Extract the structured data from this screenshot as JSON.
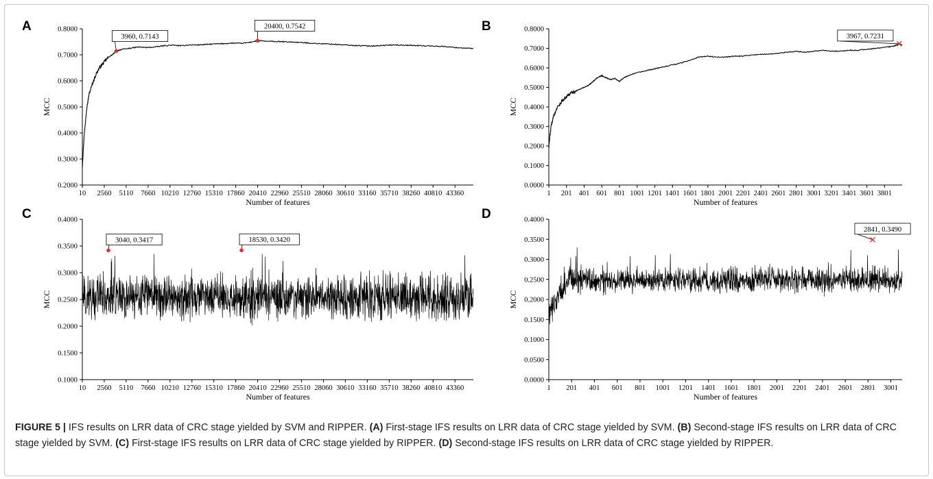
{
  "caption": {
    "figure_label": "FIGURE 5 |",
    "title": "IFS results on LRR data of CRC stage yielded by SVM and RIPPER.",
    "parts": [
      {
        "label": "(A)",
        "text": "First-stage IFS results on LRR data of CRC stage yielded by SVM."
      },
      {
        "label": "(B)",
        "text": "Second-stage IFS results on LRR data of CRC stage yielded by SVM."
      },
      {
        "label": "(C)",
        "text": "First-stage IFS results on LRR data of CRC stage yielded by RIPPER."
      },
      {
        "label": "(D)",
        "text": "Second-stage IFS results on LRR data of CRC stage yielded by RIPPER."
      }
    ]
  },
  "chart_data": [
    {
      "panel": "A",
      "type": "line",
      "xlabel": "Number of features",
      "ylabel": "MCC",
      "xlim": [
        10,
        45500
      ],
      "ylim": [
        0.2,
        0.8
      ],
      "yticks": [
        "0.2000",
        "0.3000",
        "0.4000",
        "0.5000",
        "0.6000",
        "0.7000",
        "0.8000"
      ],
      "xticks": [
        10,
        2560,
        5110,
        7660,
        10210,
        12760,
        15310,
        17860,
        20410,
        22960,
        25510,
        28060,
        30610,
        33160,
        35710,
        38260,
        40810,
        43360
      ],
      "grid": false,
      "legend": "none",
      "line_color": "#000000",
      "marker_color": "#e03030",
      "marker_style": "dot",
      "series": [
        {
          "x": [
            10,
            200,
            500,
            800,
            1200,
            1600,
            2000,
            2500,
            3000,
            3500,
            3960,
            4500,
            5500,
            6500,
            7500,
            8500,
            9500,
            10500,
            11500,
            12500,
            13500,
            14500,
            15500,
            16500,
            17500,
            18500,
            19500,
            20400,
            21500,
            22500,
            23500,
            24500,
            25500,
            26500,
            27500,
            28500,
            29500,
            30500,
            31500,
            32500,
            33500,
            34500,
            35500,
            36500,
            37500,
            38500,
            39500,
            40500,
            41500,
            42500,
            43500,
            44500,
            45500
          ],
          "y": [
            0.27,
            0.38,
            0.49,
            0.55,
            0.59,
            0.625,
            0.65,
            0.67,
            0.69,
            0.7,
            0.7143,
            0.72,
            0.725,
            0.73,
            0.728,
            0.73,
            0.735,
            0.737,
            0.735,
            0.738,
            0.738,
            0.74,
            0.742,
            0.743,
            0.745,
            0.744,
            0.748,
            0.7542,
            0.752,
            0.751,
            0.75,
            0.749,
            0.747,
            0.745,
            0.743,
            0.742,
            0.74,
            0.738,
            0.736,
            0.735,
            0.734,
            0.735,
            0.737,
            0.738,
            0.737,
            0.736,
            0.735,
            0.734,
            0.733,
            0.731,
            0.728,
            0.726,
            0.724
          ]
        }
      ],
      "annotations": [
        {
          "x": 3960,
          "y": 0.7143,
          "label": "3960, 0.7143"
        },
        {
          "x": 20400,
          "y": 0.7542,
          "label": "20400, 0.7542"
        }
      ]
    },
    {
      "panel": "B",
      "type": "line",
      "xlabel": "Number of features",
      "ylabel": "MCC",
      "xlim": [
        1,
        4000
      ],
      "ylim": [
        0.0,
        0.8
      ],
      "yticks": [
        "0.0000",
        "0.1000",
        "0.2000",
        "0.3000",
        "0.4000",
        "0.5000",
        "0.6000",
        "0.7000",
        "0.8000"
      ],
      "xticks": [
        1,
        201,
        401,
        601,
        801,
        1001,
        1201,
        1401,
        1601,
        1801,
        2001,
        2201,
        2401,
        2601,
        2801,
        3001,
        3201,
        3401,
        3601,
        3801
      ],
      "grid": false,
      "legend": "none",
      "line_color": "#000000",
      "marker_color": "#e03030",
      "marker_style": "cross",
      "series": [
        {
          "x": [
            1,
            10,
            30,
            60,
            100,
            150,
            200,
            250,
            300,
            350,
            400,
            450,
            500,
            550,
            600,
            650,
            700,
            750,
            800,
            850,
            900,
            1000,
            1100,
            1200,
            1300,
            1400,
            1500,
            1600,
            1700,
            1800,
            1900,
            2000,
            2100,
            2200,
            2300,
            2400,
            2500,
            2600,
            2700,
            2800,
            2900,
            3000,
            3100,
            3200,
            3300,
            3400,
            3500,
            3600,
            3700,
            3800,
            3900,
            3967,
            4000
          ],
          "y": [
            0.19,
            0.24,
            0.31,
            0.36,
            0.4,
            0.43,
            0.45,
            0.47,
            0.48,
            0.49,
            0.5,
            0.51,
            0.53,
            0.55,
            0.56,
            0.55,
            0.54,
            0.545,
            0.53,
            0.55,
            0.56,
            0.575,
            0.585,
            0.595,
            0.605,
            0.615,
            0.625,
            0.64,
            0.655,
            0.66,
            0.655,
            0.655,
            0.66,
            0.66,
            0.665,
            0.67,
            0.67,
            0.675,
            0.68,
            0.685,
            0.68,
            0.685,
            0.69,
            0.685,
            0.685,
            0.69,
            0.69,
            0.695,
            0.7,
            0.705,
            0.71,
            0.7231,
            0.715
          ]
        }
      ],
      "annotations": [
        {
          "x": 3967,
          "y": 0.7231,
          "label": "3967, 0.7231"
        }
      ]
    },
    {
      "panel": "C",
      "type": "line",
      "xlabel": "Number of features",
      "ylabel": "MCC",
      "xlim": [
        10,
        45500
      ],
      "ylim": [
        0.1,
        0.4
      ],
      "yticks": [
        "0.1000",
        "0.1500",
        "0.2000",
        "0.2500",
        "0.3000",
        "0.3500",
        "0.4000"
      ],
      "xticks": [
        10,
        2560,
        5110,
        7660,
        10210,
        12760,
        15310,
        17860,
        20410,
        22960,
        25510,
        28060,
        30610,
        33160,
        35710,
        38260,
        40810,
        43360
      ],
      "grid": false,
      "legend": "none",
      "line_color": "#000000",
      "marker_color": "#e03030",
      "marker_style": "dot",
      "noise": {
        "center": 0.255,
        "spread": 0.028,
        "min": 0.155,
        "max": 0.335,
        "points": 1800
      },
      "annotations": [
        {
          "x": 3040,
          "y": 0.3417,
          "label": "3040, 0.3417"
        },
        {
          "x": 18530,
          "y": 0.342,
          "label": "18530, 0.3420"
        }
      ]
    },
    {
      "panel": "D",
      "type": "line",
      "xlabel": "Number of features",
      "ylabel": "MCC",
      "xlim": [
        1,
        3100
      ],
      "ylim": [
        0.0,
        0.4
      ],
      "yticks": [
        "0.0000",
        "0.0500",
        "0.1000",
        "0.1500",
        "0.2000",
        "0.2500",
        "0.3000",
        "0.3500",
        "0.4000"
      ],
      "xticks": [
        1,
        201,
        401,
        601,
        801,
        1001,
        1201,
        1401,
        1601,
        1801,
        2001,
        2201,
        2401,
        2601,
        2801,
        3001
      ],
      "grid": false,
      "legend": "none",
      "line_color": "#000000",
      "marker_color": "#e03030",
      "marker_style": "cross",
      "noise": {
        "center": 0.248,
        "spread": 0.022,
        "min": 0.135,
        "max": 0.335,
        "points": 1500
      },
      "annotations": [
        {
          "x": 2841,
          "y": 0.349,
          "label": "2841, 0.3490"
        }
      ]
    }
  ]
}
